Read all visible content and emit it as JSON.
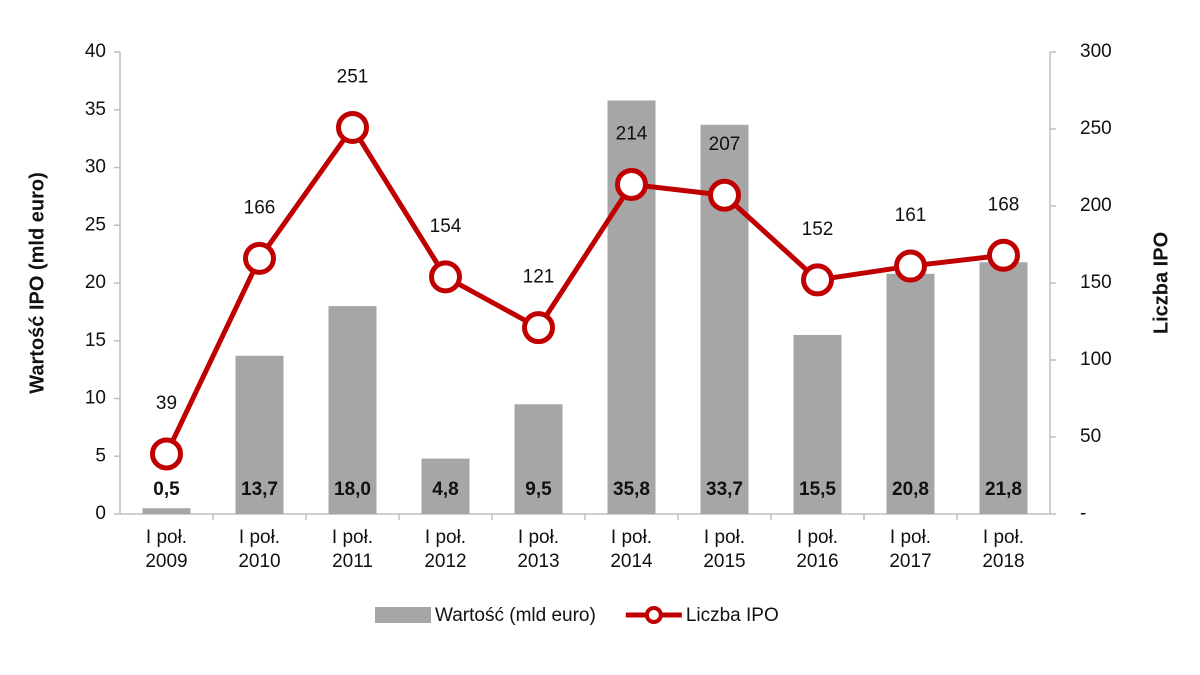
{
  "chart_data": {
    "type": "bar-line",
    "categories": [
      "I poł.\n2009",
      "I poł.\n2010",
      "I poł.\n2011",
      "I poł.\n2012",
      "I poł.\n2013",
      "I poł.\n2014",
      "I poł.\n2015",
      "I poł.\n2016",
      "I poł.\n2017",
      "I poł.\n2018"
    ],
    "ylabel": "Wartość IPO (mld euro)",
    "y2label": "Liczba IPO",
    "ylim": [
      0,
      40
    ],
    "yticks": [
      0,
      5,
      10,
      15,
      20,
      25,
      30,
      35,
      40
    ],
    "y2lim": [
      0,
      300
    ],
    "y2ticks": [
      {
        "value": 0,
        "label": "-"
      },
      50,
      100,
      150,
      200,
      250,
      300
    ],
    "series": [
      {
        "name": "Wartość (mld euro)",
        "type": "bar",
        "color": "#a6a6a6",
        "axis": "y",
        "values": [
          0.5,
          13.7,
          18.0,
          4.8,
          9.5,
          35.8,
          33.7,
          15.5,
          20.8,
          21.8
        ],
        "value_labels": [
          "0,5",
          "13,7",
          "18,0",
          "4,8",
          "9,5",
          "35,8",
          "33,7",
          "15,5",
          "20,8",
          "21,8"
        ]
      },
      {
        "name": "Liczba IPO",
        "type": "line",
        "color": "#c00000",
        "axis": "y2",
        "values": [
          39,
          166,
          251,
          154,
          121,
          214,
          207,
          152,
          161,
          168
        ]
      }
    ],
    "legend": "bottom"
  }
}
